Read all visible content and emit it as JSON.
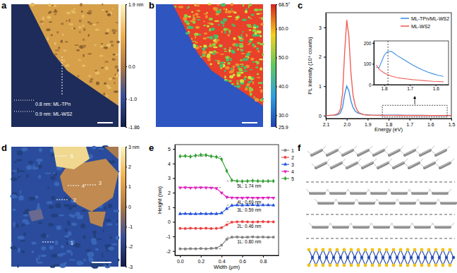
{
  "chart_data": [
    {
      "type": "image",
      "panel_label": "a",
      "colorbar": {
        "range": [
          -1.86,
          1.9
        ],
        "ticks": [
          {
            "value": 1.9,
            "label": "1.9 nm"
          },
          {
            "value": 0,
            "label": "0.0"
          },
          {
            "value": -1,
            "label": "-1.0"
          },
          -1.86
        ]
      },
      "annotations": [
        "0.8 nm: ML-TPn",
        "0.9 nm: ML-WS2"
      ]
    },
    {
      "type": "image",
      "panel_label": "b",
      "colorbar": {
        "range": [
          25.9,
          68.5
        ],
        "ticks": [
          {
            "value": 68.5,
            "label": "68.5°"
          },
          {
            "value": 60,
            "label": "60.0"
          },
          {
            "value": 50,
            "label": "50.0"
          },
          {
            "value": 40,
            "label": "40.0"
          },
          {
            "value": 30,
            "label": "30.0"
          },
          25.9
        ]
      }
    },
    {
      "type": "line",
      "panel_label": "c",
      "x_label": "Energy (eV)",
      "y_label": "PL intensity (10⁴ counts)",
      "x": [
        2.1,
        2.08,
        2.06,
        2.05,
        2.04,
        2.03,
        2.02,
        2.01,
        2.0,
        1.99,
        1.98,
        1.97,
        1.96,
        1.95,
        1.94,
        1.92,
        1.9,
        1.88,
        1.85,
        1.82,
        1.8,
        1.78,
        1.75,
        1.72,
        1.7,
        1.65,
        1.6,
        1.55,
        1.5
      ],
      "series": [
        {
          "name": "ML-TPn/ML-WS2",
          "color": "#3d8fe0",
          "values": [
            0,
            0.005,
            0.01,
            0.02,
            0.04,
            0.09,
            0.28,
            0.72,
            1.0,
            0.85,
            0.5,
            0.28,
            0.16,
            0.1,
            0.07,
            0.035,
            0.02,
            0.012,
            0.008,
            0.008,
            0.014,
            0.016,
            0.014,
            0.012,
            0.0105,
            0.007,
            0.005,
            0.003,
            0.002
          ]
        },
        {
          "name": "ML-WS2",
          "color": "#f0605a",
          "values": [
            0,
            0.01,
            0.02,
            0.04,
            0.08,
            0.22,
            0.75,
            2.15,
            3.25,
            2.7,
            1.45,
            0.7,
            0.35,
            0.18,
            0.09,
            0.035,
            0.02,
            0.012,
            0.01,
            0.0075,
            0.0057,
            0.0045,
            0.0034,
            0.0029,
            0.0025,
            0.002,
            0.0016,
            0.0013,
            0.001
          ]
        }
      ],
      "xlim": [
        2.1,
        1.5
      ],
      "xticks": [
        2.1,
        {
          "value": 2,
          "label": "2.0"
        },
        1.9,
        1.8,
        1.7,
        1.6,
        1.5
      ],
      "ylim": [
        -0.1,
        3.5
      ],
      "yticks": [
        0,
        1,
        2,
        3
      ],
      "legend": "upper right",
      "zoom_region": {
        "xlim": [
          1.83,
          1.52
        ],
        "ylim": [
          -0.05,
          0.35
        ]
      },
      "inset": {
        "x": [
          1.83,
          1.82,
          1.81,
          1.8,
          1.79,
          1.78,
          1.77,
          1.76,
          1.75,
          1.73,
          1.71,
          1.69,
          1.67,
          1.65,
          1.63,
          1.61,
          1.59,
          1.57
        ],
        "series": [
          {
            "values": [
              85,
              80,
              110,
              140,
              155,
              160,
              158,
              150,
              140,
              125,
              110,
              95,
              82,
              70,
              60,
              52,
              45,
              40
            ]
          },
          {
            "values": [
              95,
              75,
              65,
              57,
              50,
              45,
              40,
              37,
              34,
              30,
              27,
              24,
              22,
              20,
              18,
              16,
              15,
              14
            ]
          }
        ],
        "xlim": [
          1.84,
          1.55
        ],
        "xticks": [
          1.8,
          1.7,
          1.6
        ],
        "ylim": [
          0,
          210
        ],
        "yticks": [
          0,
          100,
          200
        ],
        "vlines": [
          1.785
        ]
      }
    },
    {
      "type": "image",
      "panel_label": "d",
      "colorbar": {
        "range": [
          -3,
          3
        ],
        "ticks": [
          {
            "value": 3,
            "label": "3 nm"
          },
          2,
          1,
          0,
          -1,
          -2,
          -3
        ]
      },
      "labels": [
        "1",
        "2",
        "3",
        "4",
        "5"
      ]
    },
    {
      "type": "line",
      "panel_label": "e",
      "x_label": "Width (μm)",
      "y_label": "Height (nm)",
      "x": [
        0,
        0.05,
        0.1,
        0.15,
        0.2,
        0.25,
        0.3,
        0.35,
        0.4,
        0.45,
        0.5,
        0.55,
        0.6,
        0.65,
        0.7,
        0.75,
        0.8,
        0.85,
        0.9
      ],
      "series": [
        {
          "name": "1",
          "color": "#808080",
          "marker": "square",
          "values": [
            -1.85,
            -1.86,
            -1.84,
            -1.85,
            -1.83,
            -1.85,
            -1.82,
            -1.8,
            -1.6,
            -1.2,
            -1.05,
            -1.04,
            -1.06,
            -1.05,
            -1.03,
            -1.05,
            -1.04,
            -1.06,
            -1.05
          ]
        },
        {
          "name": "2",
          "color": "#f04040",
          "marker": "circle",
          "values": [
            -0.45,
            -0.46,
            -0.44,
            -0.45,
            -0.45,
            -0.44,
            -0.46,
            -0.45,
            -0.4,
            -0.2,
            -0.02,
            0,
            0.01,
            0,
            -0.01,
            0,
            0.01,
            0,
            0
          ]
        },
        {
          "name": "3",
          "color": "#2050e0",
          "marker": "triangle",
          "values": [
            0.55,
            0.56,
            0.55,
            0.54,
            0.56,
            0.55,
            0.56,
            0.55,
            0.6,
            0.9,
            1.12,
            1.15,
            1.14,
            1.15,
            1.16,
            1.14,
            1.15,
            1.15,
            1.14
          ]
        },
        {
          "name": "4",
          "color": "#e020c0",
          "marker": "triangle-down",
          "values": [
            2.35,
            2.36,
            2.34,
            2.35,
            2.36,
            2.35,
            2.34,
            2.3,
            2.0,
            1.7,
            1.66,
            1.65,
            1.64,
            1.66,
            1.65,
            1.64,
            1.65,
            1.66,
            1.65
          ]
        },
        {
          "name": "5",
          "color": "#30a030",
          "marker": "diamond",
          "values": [
            4.5,
            4.52,
            4.48,
            4.55,
            4.6,
            4.58,
            4.5,
            4.45,
            4.3,
            3.5,
            2.85,
            2.8,
            2.78,
            2.8,
            2.82,
            2.8,
            2.79,
            2.8,
            2.8
          ]
        }
      ],
      "annotations": [
        "1L: 0.80 nm",
        "2L: 0.46 nm",
        "3L: 0.59 nm",
        "4L: 0.69 nm",
        "5L: 1.74 nm"
      ],
      "xlim": [
        -0.05,
        0.95
      ],
      "xticks": [
        {
          "value": 0,
          "label": "0.0"
        },
        0.2,
        0.4,
        0.6,
        0.8
      ],
      "ylim": [
        -2.3,
        5.3
      ],
      "yticks": [
        -2,
        -1,
        0,
        1,
        2,
        3,
        4,
        5
      ],
      "legend": "right"
    },
    {
      "type": "schematic",
      "panel_label": "f"
    }
  ]
}
